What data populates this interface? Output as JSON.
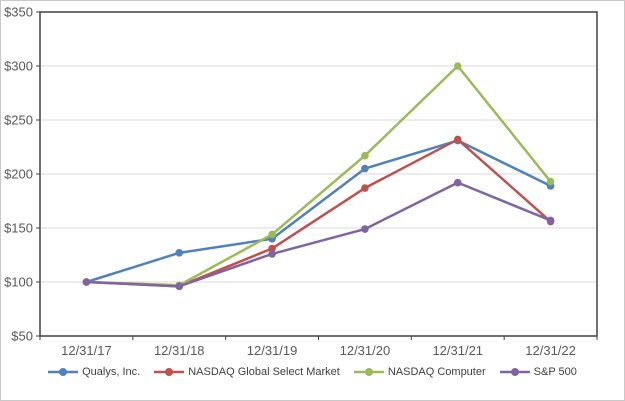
{
  "chart_data": {
    "type": "line",
    "title": "",
    "xlabel": "",
    "ylabel": "",
    "x_categories": [
      "12/31/17",
      "12/31/18",
      "12/31/19",
      "12/31/20",
      "12/31/21",
      "12/31/22"
    ],
    "y_tick_values": [
      50,
      100,
      150,
      200,
      250,
      300,
      350
    ],
    "y_tick_labels": [
      "$50",
      "$100",
      "$150",
      "$200",
      "$250",
      "$300",
      "$350"
    ],
    "ylim": [
      50,
      350
    ],
    "grid": "horizontal",
    "legend_position": "bottom",
    "series": [
      {
        "name": "Qualys, Inc.",
        "color": "#4F81BD",
        "marker": "circle",
        "values": [
          100,
          127,
          140,
          205,
          231,
          189
        ]
      },
      {
        "name": "NASDAQ Global Select Market",
        "color": "#C0504D",
        "marker": "circle",
        "values": [
          100,
          96,
          131,
          187,
          232,
          156
        ]
      },
      {
        "name": "NASDAQ Computer",
        "color": "#9BBB59",
        "marker": "circle",
        "values": [
          100,
          97,
          144,
          217,
          300,
          193
        ]
      },
      {
        "name": "S&P 500",
        "color": "#8064A2",
        "marker": "circle",
        "values": [
          100,
          96,
          126,
          149,
          192,
          157
        ]
      }
    ]
  },
  "style": {
    "grid_color": "#D9D9D9",
    "axis_color": "#404040",
    "label_color": "#595959",
    "frame_border_color": "#C9C9C9",
    "background": "#FFFFFF"
  }
}
